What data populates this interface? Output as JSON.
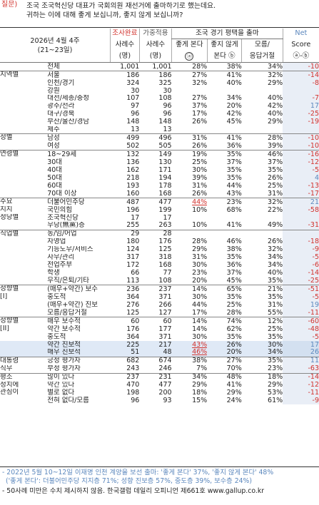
{
  "question": {
    "label": "질문)",
    "line1": "조국 조국혁신당 대표가 국회의원 재선거에 출마하기로 했는데요.",
    "line2": "귀하는 이에 대해 좋게 보십니까, 좋지 않게 보십니까?"
  },
  "header": {
    "title_line1": "2026년 4월 4주",
    "title_line2": "(21~23일)",
    "col_n1_top": "조사완료",
    "col_n1_mid": "사례수",
    "col_n1_bot": "(명)",
    "col_n2_top": "가중적용",
    "col_n2_mid": "사례수",
    "col_n2_bot": "(명)",
    "group_title": "조국 경기 평택을 출마",
    "col_p1_mid": "좋게 본다",
    "col_p1_bot": "ⓐ",
    "col_p2_mid": "좋지 않게",
    "col_p2_bot": "본다 ⓑ",
    "col_p3_mid": "모름/",
    "col_p3_bot": "응답거절",
    "col_net_top": "Net",
    "col_net_mid": "Score",
    "col_net_bot": "ⓐ-ⓑ"
  },
  "rows": [
    {
      "seg": "",
      "sub": "전체",
      "n1": "1,001",
      "n2": "1,001",
      "p1": "28%",
      "p2": "38%",
      "p3": "34%",
      "net": "-10",
      "gs": true
    },
    {
      "seg": "지역별",
      "sub": "서울",
      "n1": "186",
      "n2": "186",
      "p1": "27%",
      "p2": "41%",
      "p3": "32%",
      "net": "-14",
      "gs": true
    },
    {
      "seg": "",
      "sub": "인천/경기",
      "n1": "324",
      "n2": "325",
      "p1": "32%",
      "p2": "40%",
      "p3": "29%",
      "net": "-8"
    },
    {
      "seg": "",
      "sub": "강원",
      "n1": "30",
      "n2": "30",
      "p1": "",
      "p2": "",
      "p3": "",
      "net": ""
    },
    {
      "seg": "",
      "sub": "대전/세종/충청",
      "n1": "107",
      "n2": "108",
      "p1": "27%",
      "p2": "34%",
      "p3": "40%",
      "net": "-7"
    },
    {
      "seg": "",
      "sub": "광주/전라",
      "n1": "97",
      "n2": "96",
      "p1": "37%",
      "p2": "20%",
      "p3": "42%",
      "net": "17",
      "blue": true
    },
    {
      "seg": "",
      "sub": "대구/경북",
      "n1": "96",
      "n2": "96",
      "p1": "17%",
      "p2": "42%",
      "p3": "40%",
      "net": "-25"
    },
    {
      "seg": "",
      "sub": "부산/울산/경남",
      "n1": "148",
      "n2": "148",
      "p1": "26%",
      "p2": "45%",
      "p3": "29%",
      "net": "-19"
    },
    {
      "seg": "",
      "sub": "제주",
      "n1": "13",
      "n2": "13",
      "p1": "",
      "p2": "",
      "p3": "",
      "net": ""
    },
    {
      "seg": "성별",
      "sub": "남성",
      "n1": "499",
      "n2": "496",
      "p1": "31%",
      "p2": "41%",
      "p3": "28%",
      "net": "-10",
      "gs": true
    },
    {
      "seg": "",
      "sub": "여성",
      "n1": "502",
      "n2": "505",
      "p1": "26%",
      "p2": "36%",
      "p3": "39%",
      "net": "-10"
    },
    {
      "seg": "연령별",
      "sub": "18~29세",
      "n1": "132",
      "n2": "149",
      "p1": "19%",
      "p2": "35%",
      "p3": "46%",
      "net": "-16",
      "gs": true
    },
    {
      "seg": "",
      "sub": "30대",
      "n1": "136",
      "n2": "130",
      "p1": "25%",
      "p2": "37%",
      "p3": "37%",
      "net": "-12"
    },
    {
      "seg": "",
      "sub": "40대",
      "n1": "162",
      "n2": "171",
      "p1": "30%",
      "p2": "35%",
      "p3": "35%",
      "net": "-5"
    },
    {
      "seg": "",
      "sub": "50대",
      "n1": "218",
      "n2": "194",
      "p1": "39%",
      "p2": "35%",
      "p3": "26%",
      "net": "4",
      "blue": true
    },
    {
      "seg": "",
      "sub": "60대",
      "n1": "193",
      "n2": "178",
      "p1": "31%",
      "p2": "44%",
      "p3": "25%",
      "net": "-13"
    },
    {
      "seg": "",
      "sub": "70대 이상",
      "n1": "160",
      "n2": "168",
      "p1": "26%",
      "p2": "43%",
      "p3": "31%",
      "net": "-17"
    },
    {
      "seg": "주요",
      "sub": "더불어민주당",
      "n1": "487",
      "n2": "477",
      "p1": "44%",
      "p2": "23%",
      "p3": "32%",
      "net": "21",
      "blue": true,
      "und": true,
      "gs": true
    },
    {
      "seg": "지지",
      "sub": "국민의힘",
      "n1": "196",
      "n2": "199",
      "p1": "10%",
      "p2": "68%",
      "p3": "22%",
      "net": "-58"
    },
    {
      "seg": "정당별",
      "sub": "조국혁신당",
      "n1": "17",
      "n2": "17",
      "p1": "",
      "p2": "",
      "p3": "",
      "net": ""
    },
    {
      "seg": "",
      "sub": "무당(無黨)층",
      "n1": "255",
      "n2": "263",
      "p1": "10%",
      "p2": "41%",
      "p3": "49%",
      "net": "-31"
    },
    {
      "seg": "직업별",
      "sub": "농/임/어업",
      "n1": "29",
      "n2": "28",
      "p1": "",
      "p2": "",
      "p3": "",
      "net": "",
      "gs": true
    },
    {
      "seg": "",
      "sub": "자영업",
      "n1": "180",
      "n2": "176",
      "p1": "28%",
      "p2": "46%",
      "p3": "26%",
      "net": "-18"
    },
    {
      "seg": "",
      "sub": "기능노무/서비스",
      "n1": "124",
      "n2": "125",
      "p1": "29%",
      "p2": "38%",
      "p3": "32%",
      "net": "-9"
    },
    {
      "seg": "",
      "sub": "사무/관리",
      "n1": "317",
      "n2": "318",
      "p1": "31%",
      "p2": "35%",
      "p3": "34%",
      "net": "-5"
    },
    {
      "seg": "",
      "sub": "전업주부",
      "n1": "172",
      "n2": "168",
      "p1": "30%",
      "p2": "36%",
      "p3": "34%",
      "net": "-6"
    },
    {
      "seg": "",
      "sub": "학생",
      "n1": "66",
      "n2": "77",
      "p1": "23%",
      "p2": "37%",
      "p3": "40%",
      "net": "-14"
    },
    {
      "seg": "",
      "sub": "무직/은퇴/기타",
      "n1": "113",
      "n2": "108",
      "p1": "20%",
      "p2": "45%",
      "p3": "35%",
      "net": "-25"
    },
    {
      "seg": "성향별",
      "sub": "(매우+약간) 보수",
      "n1": "236",
      "n2": "237",
      "p1": "14%",
      "p2": "65%",
      "p3": "21%",
      "net": "-51",
      "gs": true
    },
    {
      "seg": "[I]",
      "sub": "중도적",
      "n1": "364",
      "n2": "371",
      "p1": "30%",
      "p2": "35%",
      "p3": "35%",
      "net": "-5"
    },
    {
      "seg": "",
      "sub": "(매우+약간) 진보",
      "n1": "276",
      "n2": "266",
      "p1": "44%",
      "p2": "25%",
      "p3": "31%",
      "net": "19",
      "blue": true
    },
    {
      "seg": "",
      "sub": "모름/응답거절",
      "n1": "125",
      "n2": "127",
      "p1": "17%",
      "p2": "28%",
      "p3": "55%",
      "net": "-11"
    },
    {
      "seg": "성향별",
      "sub": "매우 보수적",
      "n1": "60",
      "n2": "60",
      "p1": "14%",
      "p2": "74%",
      "p3": "12%",
      "net": "-60",
      "gs": true
    },
    {
      "seg": "[II]",
      "sub": "약간 보수적",
      "n1": "176",
      "n2": "177",
      "p1": "14%",
      "p2": "62%",
      "p3": "25%",
      "net": "-48"
    },
    {
      "seg": "",
      "sub": "중도적",
      "n1": "364",
      "n2": "371",
      "p1": "30%",
      "p2": "35%",
      "p3": "35%",
      "net": "-5"
    },
    {
      "seg": "",
      "sub": "약간 진보적",
      "n1": "225",
      "n2": "217",
      "p1": "43%",
      "p2": "26%",
      "p3": "30%",
      "net": "17",
      "blue": true,
      "hl": true,
      "und": true
    },
    {
      "seg": "",
      "sub": "매우 진보적",
      "n1": "51",
      "n2": "48",
      "p1": "46%",
      "p2": "20%",
      "p3": "34%",
      "net": "26",
      "blue": true,
      "hl": true,
      "und": true
    },
    {
      "seg": "대통령",
      "sub": "긍정 평가자",
      "n1": "682",
      "n2": "674",
      "p1": "38%",
      "p2": "27%",
      "p3": "35%",
      "net": "11",
      "blue": true,
      "gs": true
    },
    {
      "seg": "직무",
      "sub": "부정 평가자",
      "n1": "243",
      "n2": "246",
      "p1": "7%",
      "p2": "70%",
      "p3": "23%",
      "net": "-63"
    },
    {
      "seg": "평소",
      "sub": "많이 있다",
      "n1": "237",
      "n2": "231",
      "p1": "34%",
      "p2": "48%",
      "p3": "18%",
      "net": "-14",
      "gs": true
    },
    {
      "seg": "정치에",
      "sub": "약간 있다",
      "n1": "470",
      "n2": "477",
      "p1": "29%",
      "p2": "41%",
      "p3": "29%",
      "net": "-12"
    },
    {
      "seg": "관심이",
      "sub": "별로 없다",
      "n1": "198",
      "n2": "200",
      "p1": "18%",
      "p2": "29%",
      "p3": "53%",
      "net": "-11"
    },
    {
      "seg": "",
      "sub": "전혀 없다/모름",
      "n1": "96",
      "n2": "93",
      "p1": "15%",
      "p2": "24%",
      "p3": "61%",
      "net": "-9"
    }
  ],
  "footer": {
    "note1": "- 2022년 5월 10~12일 이재명 인천 계양을 보선 출마: '좋게 본다' 37%, '좋지 않게 본다' 48%",
    "note2": "('좋게 본다': 더불어민주당 지지층 71%; 성향 진보층 57%, 중도층 39%, 보수층 24%)",
    "note3": "- 50사례 미만은 수치 제시하지 않음. 한국갤럽 데일리 오피니언 제661호 www.gallup.co.kr"
  },
  "colors": {
    "red": "#d2322d",
    "blue": "#5b87bd",
    "highlight": "#dfe9f6"
  }
}
